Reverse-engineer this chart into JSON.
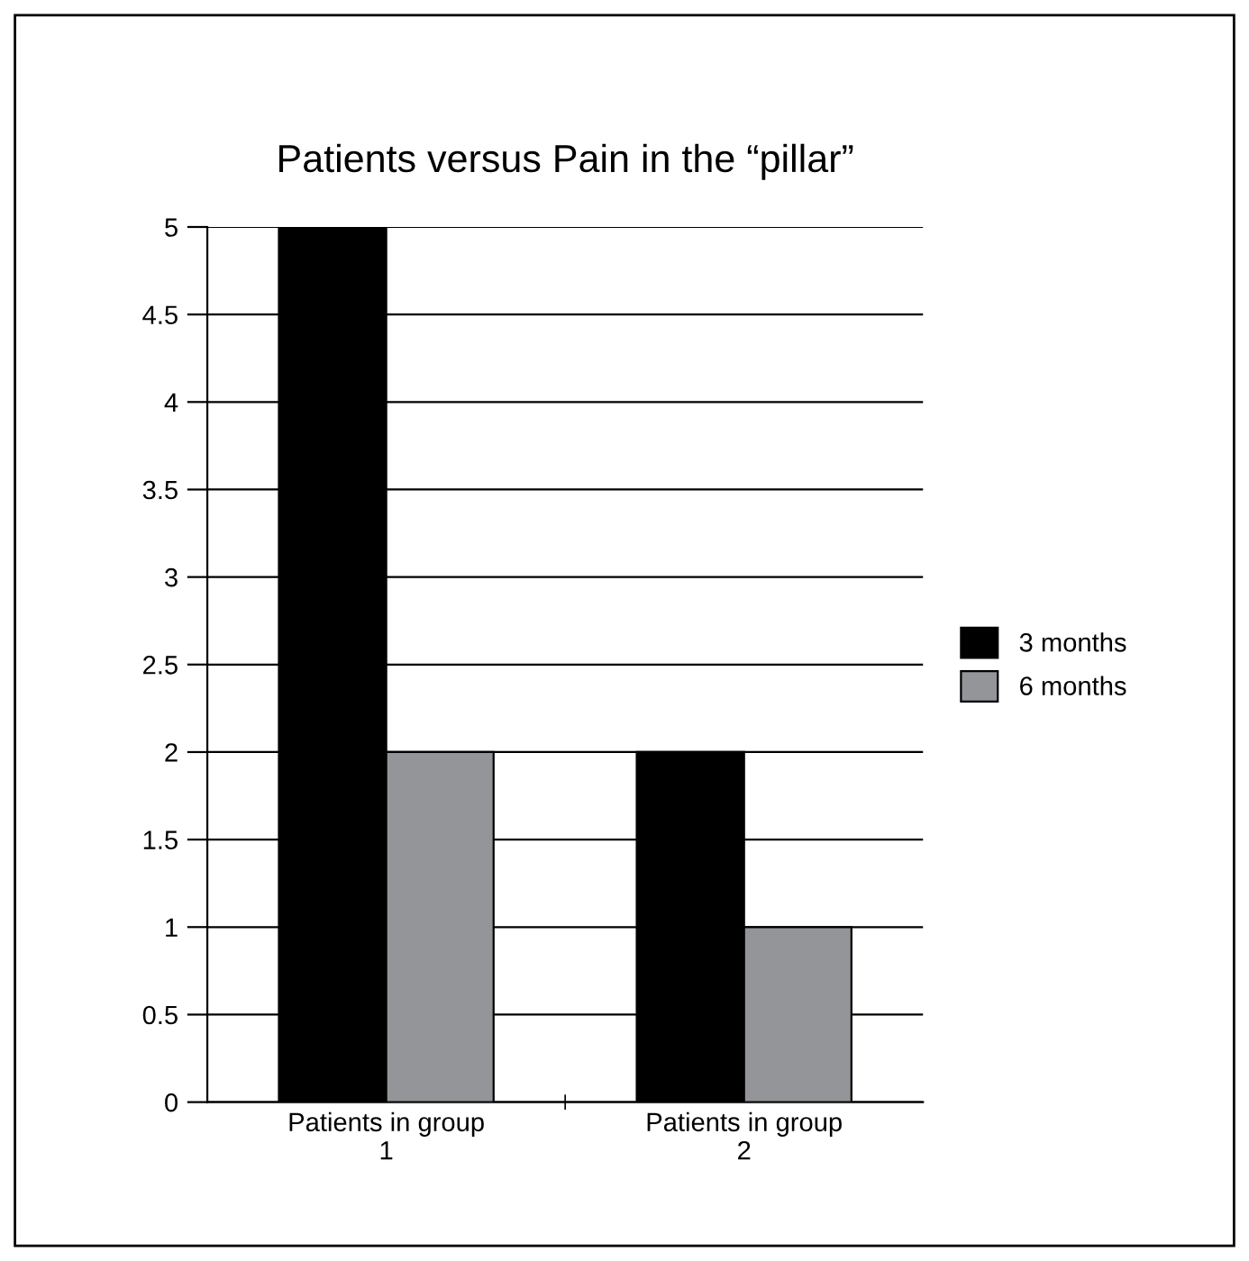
{
  "chart_data": {
    "type": "bar",
    "title": "Patients versus Pain in the “pillar”",
    "categories": [
      "Patients in group\n1",
      "Patients in group\n2"
    ],
    "series": [
      {
        "name": "3 months",
        "color": "#000000",
        "values": [
          5,
          2
        ]
      },
      {
        "name": "6 months",
        "color": "#939598",
        "values": [
          2,
          1
        ]
      }
    ],
    "ylim": [
      0,
      5
    ],
    "yticks": [
      0,
      0.5,
      1,
      1.5,
      2,
      2.5,
      3,
      3.5,
      4,
      4.5,
      5
    ],
    "grid": "y",
    "legend": "right"
  }
}
